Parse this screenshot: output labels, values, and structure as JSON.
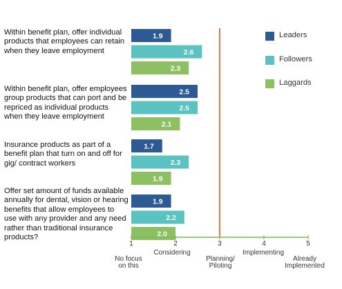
{
  "chart_data": {
    "type": "bar",
    "orientation": "horizontal",
    "categories": [
      "Within benefit plan, offer individual products that employees can retain when they leave employment",
      "Within benefit plan, offer employees group products that can port and be repriced as individual products when they leave employment",
      "Insurance products as part of a benefit plan that turn on and off for gig/ contract workers",
      "Offer set amount of funds available annually for dental, vision or hearing benefits that allow employees to use with any provider and any need rather than traditional insurance products?"
    ],
    "series": [
      {
        "name": "Leaders",
        "color": "#2e5a94",
        "values": [
          1.9,
          2.5,
          1.7,
          1.9
        ]
      },
      {
        "name": "Followers",
        "color": "#5bc2c2",
        "values": [
          2.6,
          2.5,
          2.3,
          2.2
        ]
      },
      {
        "name": "Laggards",
        "color": "#8cc063",
        "values": [
          2.3,
          2.1,
          1.9,
          2.0
        ]
      }
    ],
    "data_labels": [
      [
        "1.9",
        "2.6",
        "2.3"
      ],
      [
        "2.5",
        "2.5",
        "2.1"
      ],
      [
        "1.7",
        "2.3",
        "1.9"
      ],
      [
        "1.9",
        "2.2",
        "2.0"
      ]
    ],
    "xlim": [
      1,
      5
    ],
    "xticks": [
      "1",
      "2",
      "3",
      "4",
      "5"
    ],
    "xtick_text": [
      [
        "No focus",
        "on this"
      ],
      [
        "Considering"
      ],
      [
        "Planning/",
        "Piloting"
      ],
      [
        "Implementing"
      ],
      [
        "Already",
        "Implemented"
      ]
    ],
    "reference_line": {
      "x": 3,
      "color": "#e8743b"
    },
    "axis_color": "#7fb858",
    "legend_position": "top-right",
    "grid": false
  }
}
